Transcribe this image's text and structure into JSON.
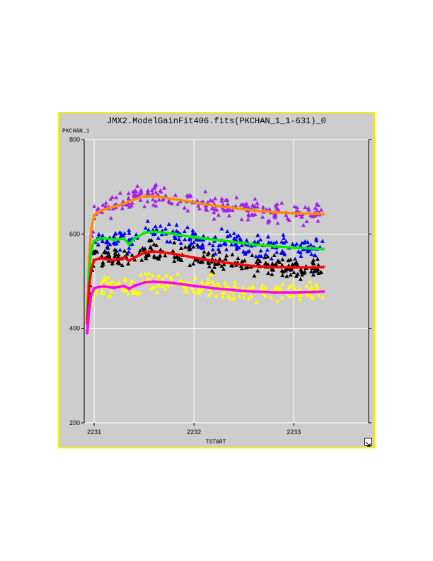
{
  "window": {
    "title": "JMX2.ModelGainFit406.fits(PKCHAN_1_1-631)_0",
    "border_color": "#f2f200",
    "background_color": "#cdcdcd",
    "resize_icon": "resize-arrow-icon"
  },
  "chart_data": {
    "type": "scatter",
    "title": "JMX2.ModelGainFit406.fits(PKCHAN_1_1-631)_0",
    "xlabel": "TSTART",
    "ylabel": "PKCHAN_1",
    "xlim": [
      2230.9,
      2233.75
    ],
    "ylim": [
      200,
      800
    ],
    "xticks": [
      2231,
      2232,
      2233
    ],
    "yticks": [
      200,
      400,
      600,
      800
    ],
    "grid": true,
    "series": [
      {
        "color": "#a020f0",
        "marker": "triangle",
        "x": [
          2230.94,
          2230.97,
          2231.0,
          2231.1,
          2231.2,
          2231.3,
          2231.4,
          2231.5,
          2231.6,
          2231.8,
          2232.0,
          2232.2,
          2232.4,
          2232.6,
          2232.8,
          2233.0,
          2233.2,
          2233.3
        ],
        "y": [
          470,
          590,
          645,
          655,
          660,
          668,
          677,
          685,
          683,
          676,
          668,
          660,
          655,
          650,
          646,
          644,
          643,
          642
        ]
      },
      {
        "color": "#0000ff",
        "marker": "triangle",
        "x": [
          2230.94,
          2230.97,
          2231.0,
          2231.1,
          2231.2,
          2231.3,
          2231.4,
          2231.5,
          2231.6,
          2231.8,
          2232.0,
          2232.2,
          2232.4,
          2232.6,
          2232.8,
          2233.0,
          2233.2,
          2233.3
        ],
        "y": [
          460,
          540,
          588,
          592,
          588,
          592,
          580,
          600,
          605,
          598,
          592,
          587,
          583,
          578,
          574,
          571,
          569,
          569
        ]
      },
      {
        "color": "#000000",
        "marker": "triangle",
        "x": [
          2230.94,
          2230.97,
          2231.0,
          2231.1,
          2231.2,
          2231.3,
          2231.4,
          2231.5,
          2231.6,
          2231.8,
          2232.0,
          2232.2,
          2232.4,
          2232.6,
          2232.8,
          2233.0,
          2233.2,
          2233.3
        ],
        "y": [
          440,
          505,
          545,
          550,
          545,
          552,
          545,
          558,
          564,
          558,
          550,
          542,
          536,
          532,
          530,
          528,
          528,
          529
        ]
      },
      {
        "color": "#ffff00",
        "marker": "triangle",
        "x": [
          2230.94,
          2230.97,
          2231.0,
          2231.1,
          2231.2,
          2231.3,
          2231.4,
          2231.5,
          2231.6,
          2231.8,
          2232.0,
          2232.2,
          2232.4,
          2232.6,
          2232.8,
          2233.0,
          2233.2,
          2233.3
        ],
        "y": [
          420,
          455,
          485,
          490,
          487,
          490,
          483,
          492,
          497,
          496,
          490,
          485,
          481,
          478,
          476,
          476,
          477,
          478
        ]
      },
      {
        "color": "#ff8c00",
        "marker": "line",
        "x": [
          2230.93,
          2230.95,
          2230.97,
          2231.0,
          2231.05,
          2231.1,
          2231.2,
          2231.3,
          2231.4,
          2231.5,
          2231.6,
          2231.8,
          2232.0,
          2232.2,
          2232.4,
          2232.6,
          2232.8,
          2233.0,
          2233.2,
          2233.3
        ],
        "y": [
          430,
          550,
          610,
          640,
          648,
          652,
          658,
          664,
          673,
          680,
          680,
          674,
          667,
          660,
          655,
          650,
          646,
          644,
          643,
          642
        ]
      },
      {
        "color": "#00ee00",
        "marker": "line",
        "x": [
          2230.93,
          2230.95,
          2230.97,
          2231.0,
          2231.05,
          2231.1,
          2231.2,
          2231.3,
          2231.35,
          2231.4,
          2231.5,
          2231.6,
          2231.8,
          2232.0,
          2232.2,
          2232.4,
          2232.6,
          2232.8,
          2233.0,
          2233.2,
          2233.3
        ],
        "y": [
          420,
          520,
          565,
          585,
          590,
          591,
          588,
          590,
          578,
          590,
          602,
          605,
          600,
          593,
          588,
          583,
          578,
          574,
          571,
          569,
          568
        ]
      },
      {
        "color": "#ff0000",
        "marker": "line",
        "x": [
          2230.93,
          2230.95,
          2230.97,
          2231.0,
          2231.05,
          2231.1,
          2231.2,
          2231.3,
          2231.35,
          2231.4,
          2231.5,
          2231.6,
          2231.8,
          2232.0,
          2232.2,
          2232.4,
          2232.6,
          2232.8,
          2233.0,
          2233.2,
          2233.3
        ],
        "y": [
          410,
          490,
          525,
          545,
          548,
          548,
          544,
          550,
          543,
          550,
          560,
          563,
          558,
          550,
          543,
          537,
          532,
          530,
          529,
          529,
          530
        ]
      },
      {
        "color": "#ff00ff",
        "marker": "line",
        "x": [
          2230.93,
          2230.95,
          2230.97,
          2231.0,
          2231.05,
          2231.1,
          2231.2,
          2231.3,
          2231.35,
          2231.4,
          2231.5,
          2231.6,
          2231.8,
          2232.0,
          2232.2,
          2232.4,
          2232.6,
          2232.8,
          2233.0,
          2233.2,
          2233.3
        ],
        "y": [
          390,
          440,
          470,
          485,
          488,
          489,
          486,
          490,
          484,
          490,
          497,
          499,
          496,
          490,
          485,
          481,
          478,
          476,
          476,
          477,
          478
        ]
      }
    ]
  }
}
